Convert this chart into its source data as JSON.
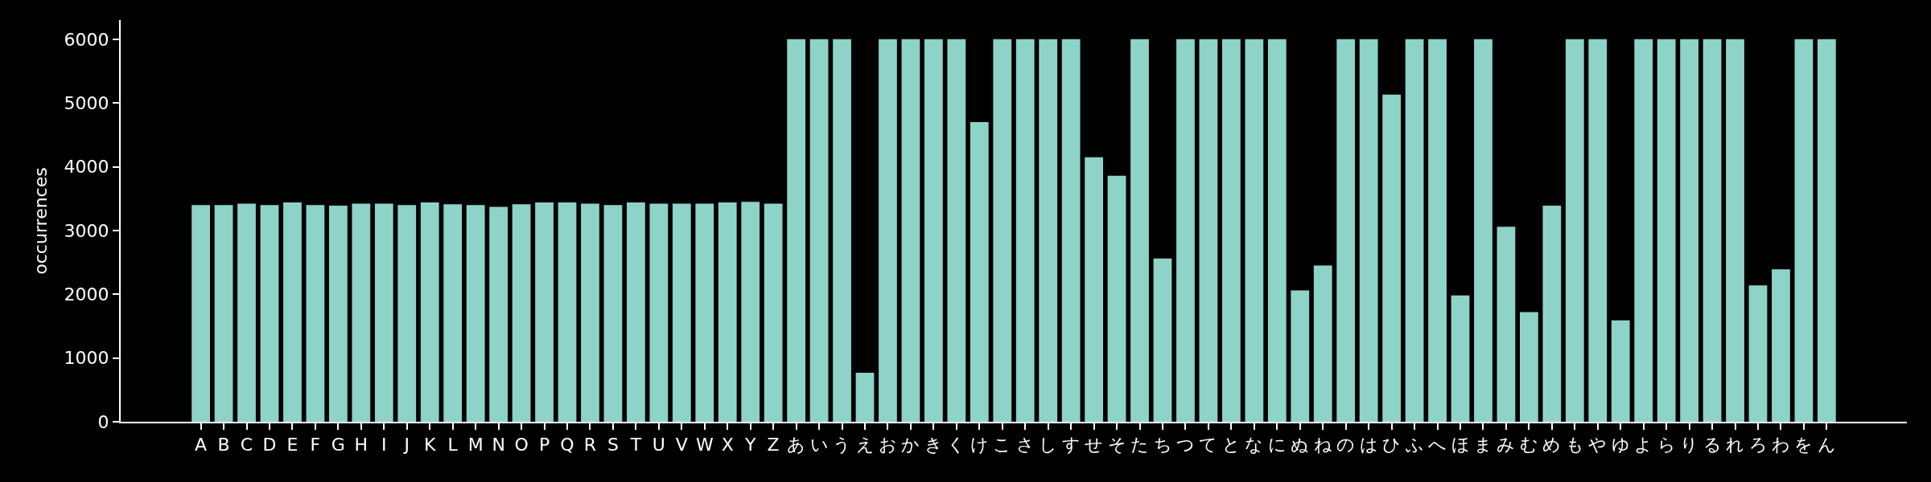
{
  "chart_data": {
    "type": "bar",
    "ylabel": "occurrences",
    "categories": [
      "A",
      "B",
      "C",
      "D",
      "E",
      "F",
      "G",
      "H",
      "I",
      "J",
      "K",
      "L",
      "M",
      "N",
      "O",
      "P",
      "Q",
      "R",
      "S",
      "T",
      "U",
      "V",
      "W",
      "X",
      "Y",
      "Z",
      "あ",
      "い",
      "う",
      "え",
      "お",
      "か",
      "き",
      "く",
      "け",
      "こ",
      "さ",
      "し",
      "す",
      "せ",
      "そ",
      "た",
      "ち",
      "つ",
      "て",
      "と",
      "な",
      "に",
      "ぬ",
      "ね",
      "の",
      "は",
      "ひ",
      "ふ",
      "へ",
      "ほ",
      "ま",
      "み",
      "む",
      "め",
      "も",
      "や",
      "ゆ",
      "よ",
      "ら",
      "り",
      "る",
      "れ",
      "ろ",
      "わ",
      "を",
      "ん"
    ],
    "values": [
      3400,
      3400,
      3420,
      3400,
      3440,
      3400,
      3390,
      3420,
      3420,
      3400,
      3440,
      3410,
      3400,
      3370,
      3410,
      3440,
      3440,
      3420,
      3400,
      3440,
      3420,
      3420,
      3420,
      3440,
      3450,
      3420,
      6000,
      6000,
      6000,
      770,
      6000,
      6000,
      6000,
      6000,
      4700,
      6000,
      6000,
      6000,
      6000,
      4150,
      3860,
      6000,
      2560,
      6000,
      6000,
      6000,
      6000,
      6000,
      2060,
      2450,
      6000,
      6000,
      5130,
      6000,
      6000,
      1980,
      6000,
      3060,
      1720,
      3390,
      6000,
      6000,
      1590,
      6000,
      6000,
      6000,
      6000,
      6000,
      2140,
      2390,
      6000,
      6000
    ],
    "color": "#8dd3c7",
    "ylim": [
      0,
      6300
    ],
    "yticks": [
      0,
      1000,
      2000,
      3000,
      4000,
      5000,
      6000
    ],
    "grid": false
  }
}
